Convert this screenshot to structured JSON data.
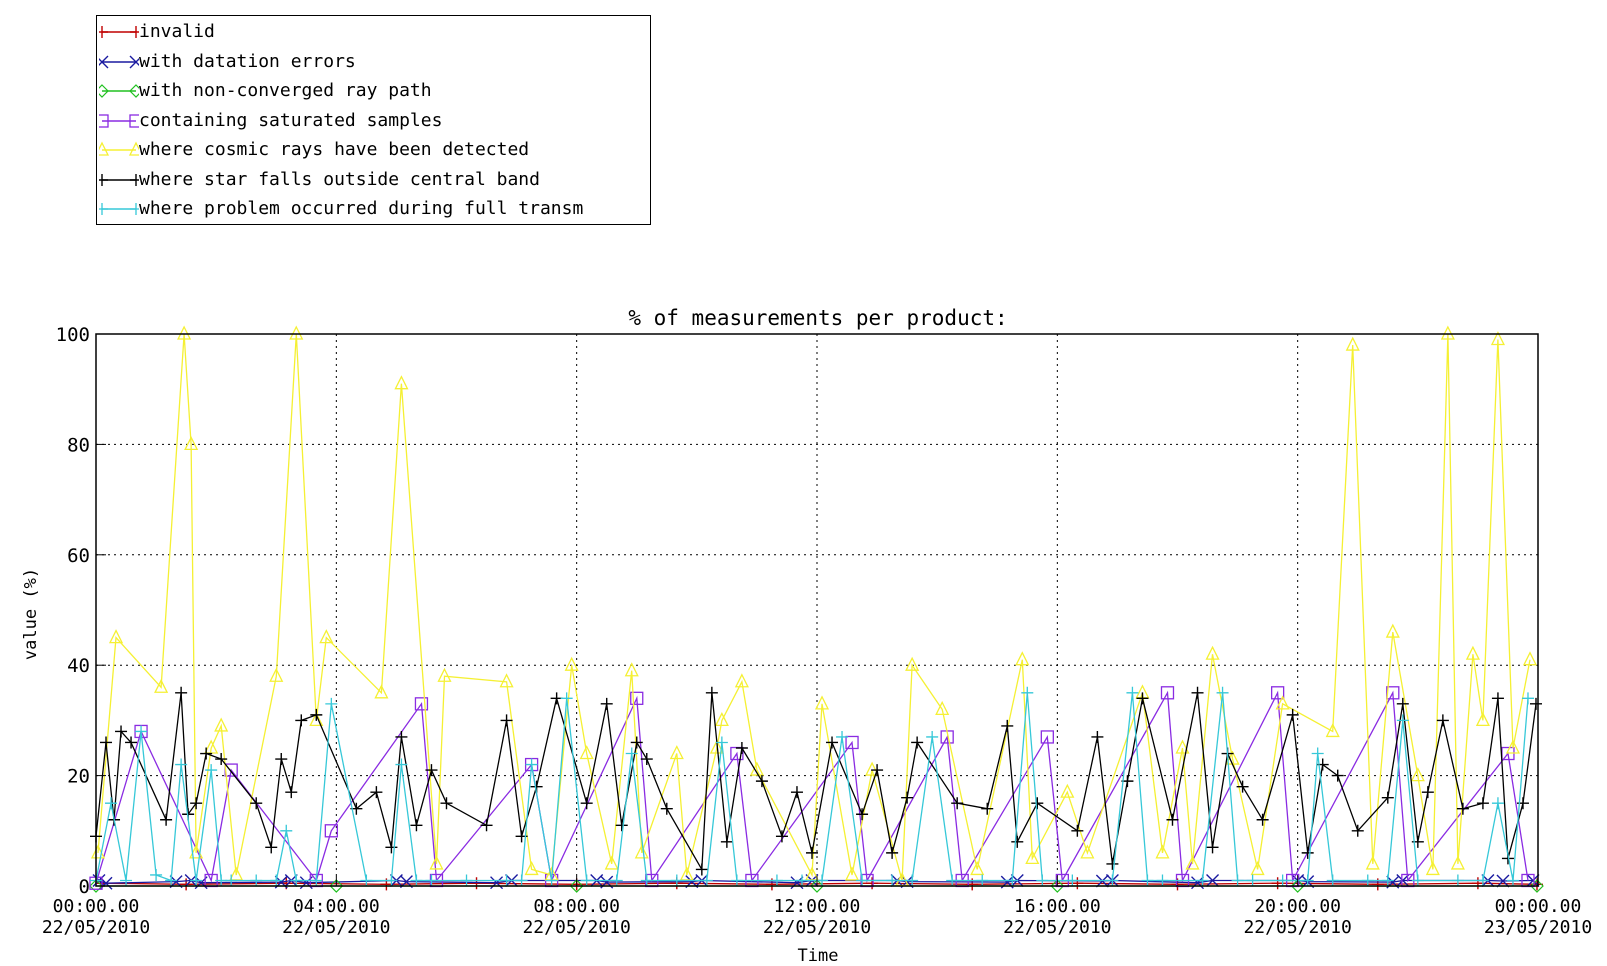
{
  "chart_data": {
    "type": "line",
    "title": "% of measurements per product:",
    "xlabel": "Time",
    "ylabel": "value (%)",
    "ylim": [
      0,
      100
    ],
    "yticks": [
      0,
      20,
      40,
      60,
      80,
      100
    ],
    "xlim": [
      "2010-05-22 00:00",
      "2010-05-23 00:00"
    ],
    "xticks": [
      {
        "t": "2010-05-22 00:00",
        "time": "00:00.00",
        "date": "22/05/2010"
      },
      {
        "t": "2010-05-22 04:00",
        "time": "04:00.00",
        "date": "22/05/2010"
      },
      {
        "t": "2010-05-22 08:00",
        "time": "08:00.00",
        "date": "22/05/2010"
      },
      {
        "t": "2010-05-22 12:00",
        "time": "12:00.00",
        "date": "22/05/2010"
      },
      {
        "t": "2010-05-22 16:00",
        "time": "16:00.00",
        "date": "22/05/2010"
      },
      {
        "t": "2010-05-22 20:00",
        "time": "20:00.00",
        "date": "22/05/2010"
      },
      {
        "t": "2010-05-23 00:00",
        "time": "00:00.00",
        "date": "23/05/2010"
      }
    ],
    "grid": "dotted",
    "legend_position": "top-left, outside plot",
    "series": [
      {
        "name": "invalid",
        "color": "#c00000",
        "marker": "plus",
        "x": [
          "00:05",
          "01:30",
          "03:10",
          "04:50",
          "06:20",
          "08:00",
          "09:40",
          "11:15",
          "12:55",
          "14:35",
          "16:20",
          "18:00",
          "19:40",
          "21:20",
          "23:00",
          "23:59"
        ],
        "y": [
          0.5,
          0.3,
          0.5,
          0.3,
          0.5,
          0.3,
          0.5,
          0.3,
          0.5,
          0.3,
          0.5,
          0.3,
          0.5,
          0.3,
          0.5,
          0.3
        ]
      },
      {
        "name": "with datation errors",
        "color": "#1a1aa0",
        "marker": "x",
        "x": [
          "00:03",
          "00:10",
          "01:20",
          "01:35",
          "01:45",
          "03:05",
          "03:15",
          "03:30",
          "05:00",
          "05:10",
          "06:40",
          "06:55",
          "08:20",
          "08:30",
          "09:55",
          "10:05",
          "11:40",
          "11:55",
          "13:20",
          "13:30",
          "15:10",
          "15:20",
          "16:45",
          "16:55",
          "18:20",
          "18:35",
          "20:00",
          "20:10",
          "21:35",
          "21:45",
          "23:10",
          "23:25",
          "23:55"
        ],
        "y": [
          1,
          0.5,
          0.8,
          1,
          0.6,
          0.7,
          1,
          0.6,
          1,
          0.8,
          0.6,
          1,
          1,
          0.7,
          0.8,
          1,
          0.6,
          1,
          1,
          0.8,
          0.7,
          1,
          0.9,
          1,
          0.6,
          1,
          1,
          0.8,
          0.7,
          1,
          1,
          0.9,
          1
        ]
      },
      {
        "name": "with non-converged ray path",
        "color": "#20c020",
        "marker": "diamond",
        "x": [
          "00:00",
          "04:00",
          "08:00",
          "12:00",
          "16:00",
          "20:00",
          "23:59"
        ],
        "y": [
          0,
          0,
          0,
          0,
          0,
          0,
          0
        ]
      },
      {
        "name": "containing saturated samples",
        "color": "#8a2be2",
        "marker": "square",
        "x": [
          "00:00",
          "00:45",
          "01:55",
          "02:15",
          "03:40",
          "03:55",
          "05:25",
          "05:40",
          "07:15",
          "07:35",
          "09:00",
          "09:15",
          "10:40",
          "10:55",
          "12:35",
          "12:50",
          "14:10",
          "14:25",
          "15:50",
          "16:05",
          "17:50",
          "18:05",
          "19:40",
          "19:55",
          "21:35",
          "21:50",
          "23:30",
          "23:50"
        ],
        "y": [
          0.5,
          28,
          1,
          21,
          1,
          10,
          33,
          1,
          22,
          1,
          34,
          1,
          24,
          1,
          26,
          1,
          27,
          1,
          27,
          1,
          35,
          1,
          35,
          1,
          35,
          1,
          24,
          1
        ]
      },
      {
        "name": "where cosmic rays have been detected",
        "color": "#f5f033",
        "marker": "triangle",
        "x": [
          "00:02",
          "00:20",
          "01:05",
          "01:28",
          "01:35",
          "01:40",
          "01:55",
          "02:05",
          "02:20",
          "03:00",
          "03:20",
          "03:40",
          "03:50",
          "04:45",
          "05:05",
          "05:40",
          "05:48",
          "06:50",
          "07:15",
          "07:35",
          "07:55",
          "08:10",
          "08:35",
          "08:55",
          "09:05",
          "09:40",
          "09:50",
          "10:20",
          "10:25",
          "10:45",
          "11:00",
          "11:55",
          "12:05",
          "12:35",
          "12:55",
          "13:25",
          "13:35",
          "14:05",
          "14:40",
          "15:25",
          "15:35",
          "16:10",
          "16:30",
          "17:25",
          "17:45",
          "18:05",
          "18:15",
          "18:35",
          "18:55",
          "19:20",
          "19:45",
          "20:35",
          "20:55",
          "21:15",
          "21:35",
          "22:00",
          "22:15",
          "22:30",
          "22:40",
          "22:55",
          "23:05",
          "23:20",
          "23:35",
          "23:52"
        ],
        "y": [
          6,
          45,
          36,
          100,
          80,
          6,
          25,
          29,
          2,
          38,
          100,
          30,
          45,
          35,
          91,
          4,
          38,
          37,
          3,
          2,
          40,
          24,
          4,
          39,
          6,
          24,
          2,
          25,
          30,
          37,
          21,
          2,
          33,
          2,
          21,
          1,
          40,
          32,
          3,
          41,
          5,
          17,
          6,
          35,
          6,
          25,
          4,
          42,
          23,
          3,
          33,
          28,
          98,
          4,
          46,
          20,
          3,
          100,
          4,
          42,
          30,
          99,
          25,
          41
        ]
      },
      {
        "name": "where star falls outside central band",
        "color": "#000000",
        "marker": "plus",
        "x": [
          "00:00",
          "00:10",
          "00:18",
          "00:25",
          "00:35",
          "01:10",
          "01:25",
          "01:32",
          "01:40",
          "01:50",
          "02:05",
          "02:40",
          "02:55",
          "03:05",
          "03:15",
          "03:25",
          "03:40",
          "04:20",
          "04:40",
          "04:55",
          "05:05",
          "05:20",
          "05:35",
          "05:50",
          "06:30",
          "06:50",
          "07:05",
          "07:20",
          "07:40",
          "08:10",
          "08:30",
          "08:45",
          "09:00",
          "09:10",
          "09:30",
          "10:05",
          "10:15",
          "10:30",
          "10:45",
          "11:05",
          "11:25",
          "11:40",
          "11:55",
          "12:15",
          "12:45",
          "13:00",
          "13:15",
          "13:30",
          "13:40",
          "14:20",
          "14:50",
          "15:10",
          "15:20",
          "15:40",
          "16:20",
          "16:40",
          "16:55",
          "17:10",
          "17:25",
          "17:55",
          "18:20",
          "18:35",
          "18:50",
          "19:05",
          "19:25",
          "19:55",
          "20:10",
          "20:25",
          "20:40",
          "21:00",
          "21:30",
          "21:45",
          "22:00",
          "22:10",
          "22:25",
          "22:45",
          "23:05",
          "23:20",
          "23:30",
          "23:45",
          "23:58"
        ],
        "y": [
          9,
          26,
          12,
          28,
          26,
          12,
          35,
          13,
          15,
          24,
          23,
          15,
          7,
          23,
          17,
          30,
          31,
          14,
          17,
          7,
          27,
          11,
          21,
          15,
          11,
          30,
          9,
          18,
          34,
          15,
          33,
          11,
          26,
          23,
          14,
          3,
          35,
          8,
          25,
          19,
          9,
          17,
          6,
          26,
          13,
          21,
          6,
          16,
          26,
          15,
          14,
          29,
          8,
          15,
          10,
          27,
          4,
          19,
          34,
          12,
          35,
          7,
          24,
          18,
          12,
          31,
          6,
          22,
          20,
          10,
          16,
          33,
          8,
          17,
          30,
          14,
          15,
          34,
          5,
          15,
          33
        ]
      },
      {
        "name": "where problem occurred during full transm",
        "color": "#36c8d8",
        "marker": "bar",
        "x": [
          "00:00",
          "00:15",
          "00:30",
          "00:45",
          "01:00",
          "01:15",
          "01:25",
          "01:40",
          "01:55",
          "02:05",
          "02:15",
          "02:40",
          "03:00",
          "03:10",
          "03:20",
          "03:40",
          "03:55",
          "04:30",
          "04:55",
          "05:05",
          "05:20",
          "05:35",
          "06:10",
          "06:50",
          "07:05",
          "07:15",
          "07:35",
          "07:50",
          "08:10",
          "08:40",
          "08:55",
          "09:10",
          "09:40",
          "10:10",
          "10:25",
          "10:40",
          "11:20",
          "11:45",
          "12:05",
          "12:25",
          "12:45",
          "13:15",
          "13:35",
          "13:55",
          "14:15",
          "14:45",
          "15:15",
          "15:30",
          "15:45",
          "16:15",
          "16:55",
          "17:15",
          "17:30",
          "17:45",
          "18:25",
          "18:45",
          "19:00",
          "19:15",
          "19:45",
          "20:10",
          "20:20",
          "20:35",
          "21:10",
          "21:30",
          "21:45",
          "22:00",
          "22:40",
          "23:05",
          "23:20",
          "23:35",
          "23:50"
        ],
        "y": [
          1,
          15,
          1,
          28,
          2,
          1,
          22,
          1,
          21,
          1,
          1,
          1,
          1,
          10,
          1,
          1,
          33,
          1,
          1,
          22,
          1,
          1,
          1,
          1,
          1,
          22,
          1,
          34,
          1,
          1,
          24,
          1,
          1,
          1,
          26,
          1,
          1,
          1,
          1,
          27,
          1,
          1,
          1,
          27,
          1,
          1,
          1,
          35,
          1,
          1,
          1,
          35,
          1,
          1,
          1,
          35,
          1,
          1,
          1,
          1,
          24,
          1,
          1,
          1,
          30,
          1,
          1,
          1,
          15,
          1,
          34
        ]
      }
    ]
  }
}
